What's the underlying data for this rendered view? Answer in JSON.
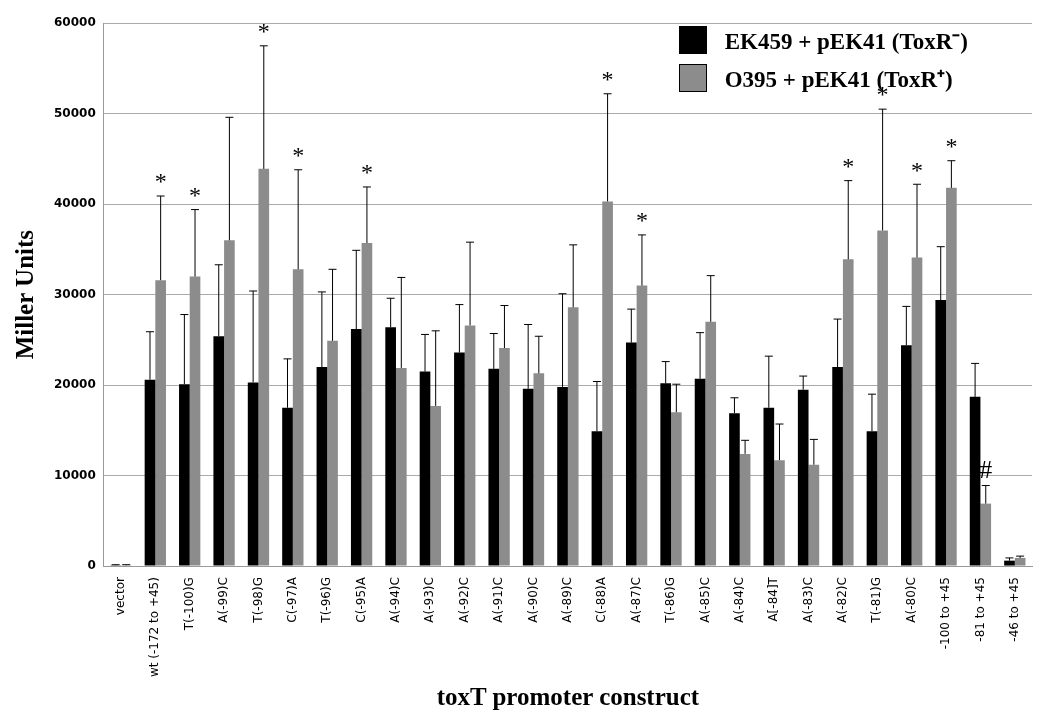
{
  "chart_data": {
    "type": "bar",
    "xlabel": "toxT promoter construct",
    "ylabel": "Miller Units",
    "categories": [
      "vector",
      "wt (-172 to +45)",
      "T(-100)G",
      "A(-99)C",
      "T(-98)G",
      "C(-97)A",
      "T(-96)G",
      "C(-95)A",
      "A(-94)C",
      "A(-93)C",
      "A(-92)C",
      "A(-91)C",
      "A(-90)C",
      "A(-89)C",
      "C(-88)A",
      "A(-87)C",
      "T(-86)G",
      "A(-85)C",
      "A(-84)C",
      "A[-84]T",
      "A(-83)C",
      "A(-82)C",
      "T(-81)G",
      "A(-80)C",
      "-100 to +45",
      "-81 to +45",
      "-46 to +45"
    ],
    "series": [
      {
        "name": "EK459 + pEK41 (ToxR⁻)",
        "color": "#000000",
        "values": [
          100,
          20600,
          20100,
          25400,
          20300,
          17500,
          22000,
          26200,
          26400,
          21500,
          23600,
          21800,
          19600,
          19800,
          14900,
          24700,
          20200,
          20700,
          16900,
          17500,
          19500,
          22000,
          14900,
          24400,
          29400,
          18700,
          600
        ],
        "errors": [
          [
            100,
            150
          ],
          [
            20600,
            25900
          ],
          [
            20100,
            27800
          ],
          [
            25400,
            33300
          ],
          [
            20300,
            30400
          ],
          [
            17500,
            22900
          ],
          [
            22000,
            30300
          ],
          [
            26200,
            34900
          ],
          [
            26400,
            29600
          ],
          [
            21500,
            25600
          ],
          [
            23600,
            28900
          ],
          [
            21800,
            25700
          ],
          [
            19600,
            26700
          ],
          [
            19800,
            30100
          ],
          [
            14900,
            20400
          ],
          [
            24700,
            28400
          ],
          [
            20200,
            22600
          ],
          [
            20700,
            25800
          ],
          [
            16900,
            18600
          ],
          [
            17500,
            23200
          ],
          [
            19500,
            21000
          ],
          [
            22000,
            27300
          ],
          [
            14900,
            19000
          ],
          [
            24400,
            28700
          ],
          [
            29400,
            35300
          ],
          [
            18700,
            22400
          ],
          [
            600,
            900
          ]
        ]
      },
      {
        "name": "O395 + pEK41 (ToxR⁺)",
        "color": "#8c8c8c",
        "values": [
          100,
          31600,
          32000,
          36000,
          43900,
          32800,
          24900,
          35700,
          21900,
          17700,
          26600,
          24100,
          21300,
          28600,
          40300,
          31000,
          17000,
          27000,
          12400,
          11700,
          11200,
          33900,
          37100,
          34100,
          41800,
          6900,
          900
        ],
        "errors": [
          [
            100,
            150
          ],
          [
            31600,
            40900
          ],
          [
            32000,
            39400
          ],
          [
            36000,
            49600
          ],
          [
            43900,
            57500
          ],
          [
            32800,
            43800
          ],
          [
            24900,
            32800
          ],
          [
            35700,
            41900
          ],
          [
            21900,
            31900
          ],
          [
            17700,
            26000
          ],
          [
            26600,
            35800
          ],
          [
            24100,
            28800
          ],
          [
            21300,
            25400
          ],
          [
            28600,
            35500
          ],
          [
            40300,
            52200
          ],
          [
            31000,
            36600
          ],
          [
            17000,
            20100
          ],
          [
            27000,
            32100
          ],
          [
            12400,
            13900
          ],
          [
            11700,
            15700
          ],
          [
            11200,
            14000
          ],
          [
            33900,
            42600
          ],
          [
            37100,
            50500
          ],
          [
            34100,
            42200
          ],
          [
            41800,
            44800
          ],
          [
            6900,
            8900
          ],
          [
            900,
            1100
          ]
        ]
      }
    ],
    "ylim": [
      0,
      60000
    ],
    "yticks": [
      0,
      10000,
      20000,
      30000,
      40000,
      50000,
      60000
    ],
    "grid": "y",
    "legend": "top right",
    "annotations": [
      {
        "text": "*",
        "x": "wt (-172 to +45)",
        "y": 40900
      },
      {
        "text": "*",
        "x": "T(-100)G",
        "y": 39400
      },
      {
        "text": "*",
        "x": "T(-98)G",
        "y": 57500
      },
      {
        "text": "*",
        "x": "C(-97)A",
        "y": 43800
      },
      {
        "text": "*",
        "x": "C(-95)A",
        "y": 41900
      },
      {
        "text": "*",
        "x": "C(-88)A",
        "y": 52200
      },
      {
        "text": "*",
        "x": "A(-87)C",
        "y": 36600
      },
      {
        "text": "*",
        "x": "A(-82)C",
        "y": 42600
      },
      {
        "text": "*",
        "x": "T(-81)G",
        "y": 50500
      },
      {
        "text": "*",
        "x": "A(-80)C",
        "y": 42200
      },
      {
        "text": "*",
        "x": "-100 to +45",
        "y": 44800
      },
      {
        "text": "#",
        "x": "-81 to +45",
        "y": 8900
      }
    ]
  }
}
